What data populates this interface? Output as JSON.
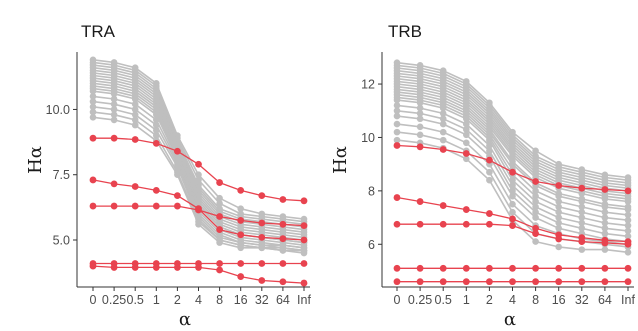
{
  "chart_data": [
    {
      "type": "line",
      "title": "TRA",
      "xlabel": "α",
      "ylabel": "Hα",
      "categories": [
        "0",
        "0.25",
        "0.5",
        "1",
        "2",
        "4",
        "8",
        "16",
        "32",
        "64",
        "Inf"
      ],
      "ylim": [
        3.2,
        12.2
      ],
      "yticks": [
        5.0,
        7.5,
        10.0
      ],
      "yticklabels": [
        "5.0",
        "7.5",
        "10.0"
      ],
      "grid": false,
      "legend": "none",
      "colors": {
        "background_series": "#bfbfbf",
        "highlight_series": "#e8434f"
      },
      "background_series": [
        {
          "values": [
            11.9,
            11.8,
            11.6,
            11.0,
            9.0,
            7.5,
            6.6,
            6.2,
            6.0,
            5.9,
            5.8
          ]
        },
        {
          "values": [
            11.8,
            11.7,
            11.5,
            10.9,
            8.9,
            7.3,
            6.4,
            6.0,
            5.9,
            5.8,
            5.7
          ]
        },
        {
          "values": [
            11.7,
            11.6,
            11.4,
            10.8,
            8.8,
            7.1,
            6.2,
            5.9,
            5.8,
            5.7,
            5.6
          ]
        },
        {
          "values": [
            11.6,
            11.5,
            11.3,
            10.7,
            8.8,
            7.0,
            6.1,
            5.8,
            5.7,
            5.6,
            5.5
          ]
        },
        {
          "values": [
            11.5,
            11.4,
            11.2,
            10.6,
            8.7,
            6.9,
            6.0,
            5.7,
            5.6,
            5.5,
            5.4
          ]
        },
        {
          "values": [
            11.4,
            11.3,
            11.1,
            10.5,
            8.6,
            6.8,
            5.9,
            5.6,
            5.5,
            5.4,
            5.3
          ]
        },
        {
          "values": [
            11.3,
            11.2,
            11.0,
            10.4,
            8.6,
            6.7,
            5.8,
            5.5,
            5.4,
            5.3,
            5.2
          ]
        },
        {
          "values": [
            11.2,
            11.1,
            10.9,
            10.3,
            8.5,
            6.6,
            5.7,
            5.4,
            5.3,
            5.2,
            5.1
          ]
        },
        {
          "values": [
            11.1,
            11.0,
            10.8,
            10.2,
            8.4,
            6.5,
            5.6,
            5.3,
            5.2,
            5.1,
            5.0
          ]
        },
        {
          "values": [
            11.0,
            10.9,
            10.7,
            10.1,
            8.3,
            6.4,
            5.5,
            5.2,
            5.1,
            5.0,
            4.9
          ]
        },
        {
          "values": [
            10.9,
            10.8,
            10.6,
            10.0,
            8.3,
            6.3,
            5.5,
            5.2,
            5.1,
            5.0,
            4.9
          ]
        },
        {
          "values": [
            10.8,
            10.7,
            10.5,
            9.9,
            8.2,
            6.2,
            5.4,
            5.1,
            5.0,
            4.9,
            4.8
          ]
        },
        {
          "values": [
            10.7,
            10.6,
            10.4,
            9.8,
            8.1,
            6.1,
            5.3,
            5.0,
            4.9,
            4.8,
            4.7
          ]
        },
        {
          "values": [
            10.5,
            10.4,
            10.2,
            9.6,
            8.0,
            6.0,
            5.2,
            4.9,
            4.8,
            4.8,
            4.7
          ]
        },
        {
          "values": [
            10.3,
            10.2,
            10.0,
            9.4,
            7.9,
            5.9,
            5.1,
            4.9,
            4.8,
            4.7,
            4.6
          ]
        },
        {
          "values": [
            10.1,
            10.0,
            9.8,
            9.2,
            7.8,
            5.8,
            5.0,
            4.8,
            4.7,
            4.7,
            4.6
          ]
        },
        {
          "values": [
            9.9,
            9.8,
            9.6,
            9.0,
            7.6,
            5.7,
            5.0,
            4.8,
            4.7,
            4.6,
            4.6
          ]
        },
        {
          "values": [
            9.7,
            9.6,
            9.4,
            8.8,
            7.5,
            5.6,
            4.9,
            4.7,
            4.7,
            4.6,
            4.5
          ]
        }
      ],
      "highlight_series": [
        {
          "values": [
            8.9,
            8.9,
            8.85,
            8.7,
            8.4,
            7.9,
            7.2,
            6.9,
            6.7,
            6.55,
            6.5
          ]
        },
        {
          "values": [
            7.3,
            7.15,
            7.05,
            6.9,
            6.7,
            6.2,
            5.4,
            5.2,
            5.1,
            5.05,
            5.0
          ]
        },
        {
          "values": [
            6.3,
            6.3,
            6.3,
            6.3,
            6.3,
            6.15,
            5.9,
            5.75,
            5.65,
            5.6,
            5.55
          ]
        },
        {
          "values": [
            4.1,
            4.1,
            4.1,
            4.1,
            4.1,
            4.1,
            4.1,
            4.1,
            4.1,
            4.1,
            4.1
          ]
        },
        {
          "values": [
            4.0,
            3.95,
            3.95,
            3.95,
            3.95,
            3.95,
            3.85,
            3.6,
            3.45,
            3.4,
            3.35
          ]
        }
      ]
    },
    {
      "type": "line",
      "title": "TRB",
      "xlabel": "α",
      "ylabel": "Hα",
      "categories": [
        "0",
        "0.25",
        "0.5",
        "1",
        "2",
        "4",
        "8",
        "16",
        "32",
        "64",
        "Inf"
      ],
      "ylim": [
        4.4,
        13.2
      ],
      "yticks": [
        6,
        8,
        10,
        12
      ],
      "yticklabels": [
        "6",
        "8",
        "10",
        "12"
      ],
      "grid": false,
      "legend": "none",
      "colors": {
        "background_series": "#bfbfbf",
        "highlight_series": "#e8434f"
      },
      "background_series": [
        {
          "values": [
            12.8,
            12.7,
            12.5,
            12.1,
            11.3,
            10.2,
            9.5,
            9.0,
            8.8,
            8.6,
            8.5
          ]
        },
        {
          "values": [
            12.7,
            12.6,
            12.4,
            12.0,
            11.2,
            10.1,
            9.3,
            8.9,
            8.7,
            8.5,
            8.4
          ]
        },
        {
          "values": [
            12.6,
            12.5,
            12.3,
            11.9,
            11.1,
            10.0,
            9.2,
            8.8,
            8.6,
            8.4,
            8.3
          ]
        },
        {
          "values": [
            12.5,
            12.4,
            12.2,
            11.8,
            11.0,
            9.9,
            9.1,
            8.7,
            8.5,
            8.3,
            8.2
          ]
        },
        {
          "values": [
            12.4,
            12.3,
            12.1,
            11.7,
            10.9,
            9.8,
            9.0,
            8.6,
            8.4,
            8.2,
            8.1
          ]
        },
        {
          "values": [
            12.3,
            12.2,
            12.0,
            11.6,
            10.8,
            9.7,
            8.9,
            8.5,
            8.3,
            8.1,
            8.0
          ]
        },
        {
          "values": [
            12.2,
            12.1,
            11.9,
            11.5,
            10.7,
            9.6,
            8.8,
            8.4,
            8.2,
            8.0,
            7.9
          ]
        },
        {
          "values": [
            12.1,
            12.0,
            11.8,
            11.4,
            10.6,
            9.5,
            8.7,
            8.3,
            8.1,
            7.9,
            7.8
          ]
        },
        {
          "values": [
            12.0,
            11.9,
            11.7,
            11.3,
            10.5,
            9.4,
            8.6,
            8.2,
            8.0,
            7.8,
            7.7
          ]
        },
        {
          "values": [
            11.9,
            11.8,
            11.6,
            11.2,
            10.4,
            9.3,
            8.5,
            8.1,
            7.9,
            7.7,
            7.6
          ]
        },
        {
          "values": [
            11.8,
            11.7,
            11.5,
            11.1,
            10.3,
            9.1,
            8.3,
            7.9,
            7.7,
            7.5,
            7.4
          ]
        },
        {
          "values": [
            11.7,
            11.6,
            11.4,
            11.0,
            10.2,
            9.0,
            8.2,
            7.8,
            7.6,
            7.4,
            7.3
          ]
        },
        {
          "values": [
            11.6,
            11.5,
            11.3,
            10.9,
            10.1,
            8.8,
            8.0,
            7.6,
            7.4,
            7.2,
            7.1
          ]
        },
        {
          "values": [
            11.5,
            11.4,
            11.2,
            10.8,
            10.0,
            8.6,
            7.8,
            7.4,
            7.2,
            7.0,
            6.9
          ]
        },
        {
          "values": [
            11.4,
            11.3,
            11.1,
            10.7,
            9.9,
            8.4,
            7.6,
            7.2,
            7.0,
            6.8,
            6.7
          ]
        },
        {
          "values": [
            11.2,
            11.1,
            10.9,
            10.5,
            9.7,
            8.2,
            7.4,
            7.0,
            6.8,
            6.6,
            6.5
          ]
        },
        {
          "values": [
            11.0,
            10.9,
            10.7,
            10.3,
            9.5,
            8.0,
            7.2,
            6.8,
            6.6,
            6.4,
            6.3
          ]
        },
        {
          "values": [
            10.8,
            10.7,
            10.5,
            10.1,
            9.3,
            7.8,
            7.0,
            6.6,
            6.4,
            6.2,
            6.1
          ]
        },
        {
          "values": [
            10.5,
            10.4,
            10.2,
            9.8,
            9.0,
            7.5,
            6.7,
            6.4,
            6.2,
            6.1,
            6.0
          ]
        },
        {
          "values": [
            10.2,
            10.1,
            9.9,
            9.5,
            8.7,
            7.2,
            6.4,
            6.2,
            6.1,
            6.0,
            5.9
          ]
        },
        {
          "values": [
            9.9,
            9.8,
            9.6,
            9.2,
            8.4,
            6.9,
            6.1,
            5.9,
            5.8,
            5.8,
            5.7
          ]
        }
      ],
      "highlight_series": [
        {
          "values": [
            9.7,
            9.65,
            9.55,
            9.4,
            9.15,
            8.7,
            8.35,
            8.2,
            8.1,
            8.05,
            8.0
          ]
        },
        {
          "values": [
            7.75,
            7.6,
            7.45,
            7.3,
            7.15,
            6.95,
            6.6,
            6.35,
            6.25,
            6.15,
            6.1
          ]
        },
        {
          "values": [
            6.75,
            6.75,
            6.75,
            6.75,
            6.75,
            6.7,
            6.4,
            6.2,
            6.1,
            6.05,
            6.0
          ]
        },
        {
          "values": [
            5.1,
            5.1,
            5.1,
            5.1,
            5.1,
            5.1,
            5.1,
            5.1,
            5.1,
            5.1,
            5.1
          ]
        },
        {
          "values": [
            4.6,
            4.6,
            4.6,
            4.6,
            4.6,
            4.6,
            4.6,
            4.6,
            4.6,
            4.6,
            4.6
          ]
        }
      ]
    }
  ]
}
